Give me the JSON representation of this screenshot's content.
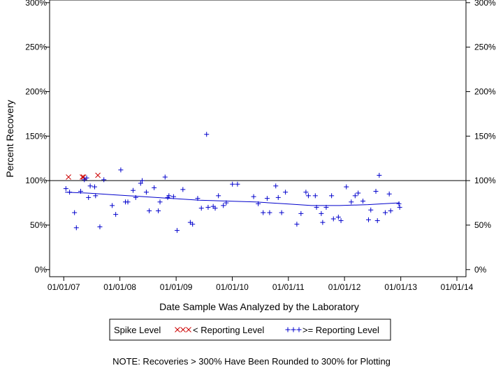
{
  "chart_data": {
    "type": "scatter",
    "title": "",
    "xlabel": "Date Sample Was Analyzed by the Laboratory",
    "ylabel": "Percent Recovery",
    "x_ticks": [
      "01/01/07",
      "01/01/08",
      "01/01/09",
      "01/01/10",
      "01/01/11",
      "01/01/12",
      "01/01/13",
      "01/01/14"
    ],
    "y_ticks": [
      "0%",
      "50%",
      "100%",
      "150%",
      "200%",
      "250%",
      "300%"
    ],
    "xlim": [
      "2006-10-01",
      "2014-03-01"
    ],
    "ylim": [
      -8,
      303
    ],
    "reference_line": 100,
    "legend": {
      "title": "Spike Level",
      "position": "bottom",
      "below_label": "< Reporting Level",
      "above_label": ">= Reporting Level"
    },
    "note": "NOTE: Recoveries > 300% Have Been Rounded to 300% for Plotting",
    "colors": {
      "below": "#cc0000",
      "above": "#0000cc",
      "axis": "#000000"
    },
    "series": [
      {
        "key": "below",
        "marker": "x",
        "points": [
          [
            "2007-02-01",
            104
          ],
          [
            "2007-05-02",
            104
          ],
          [
            "2007-05-10",
            104
          ],
          [
            "2007-08-11",
            106
          ]
        ]
      },
      {
        "key": "above",
        "marker": "+",
        "points": [
          [
            "2007-01-15",
            91
          ],
          [
            "2007-02-08",
            87
          ],
          [
            "2007-03-12",
            64
          ],
          [
            "2007-03-24",
            47
          ],
          [
            "2007-04-21",
            88
          ],
          [
            "2007-05-15",
            101
          ],
          [
            "2007-05-30",
            103
          ],
          [
            "2007-06-11",
            81
          ],
          [
            "2007-06-22",
            94
          ],
          [
            "2007-07-21",
            93
          ],
          [
            "2007-07-27",
            83
          ],
          [
            "2007-08-24",
            48
          ],
          [
            "2007-09-19",
            101
          ],
          [
            "2007-11-12",
            72
          ],
          [
            "2007-12-05",
            62
          ],
          [
            "2008-01-07",
            112
          ],
          [
            "2008-02-06",
            76
          ],
          [
            "2008-02-22",
            76
          ],
          [
            "2008-03-27",
            89
          ],
          [
            "2008-04-13",
            81
          ],
          [
            "2008-05-15",
            97
          ],
          [
            "2008-05-25",
            100
          ],
          [
            "2008-06-21",
            87
          ],
          [
            "2008-07-10",
            66
          ],
          [
            "2008-08-11",
            92
          ],
          [
            "2008-09-07",
            66
          ],
          [
            "2008-09-18",
            76
          ],
          [
            "2008-10-21",
            104
          ],
          [
            "2008-11-07",
            81
          ],
          [
            "2008-11-15",
            83
          ],
          [
            "2008-12-15",
            82
          ],
          [
            "2009-01-07",
            44
          ],
          [
            "2009-02-14",
            90
          ],
          [
            "2009-04-03",
            53
          ],
          [
            "2009-04-18",
            51
          ],
          [
            "2009-05-21",
            80
          ],
          [
            "2009-06-14",
            69
          ],
          [
            "2009-07-28",
            70
          ],
          [
            "2009-07-18",
            152
          ],
          [
            "2009-08-30",
            71
          ],
          [
            "2009-09-12",
            69
          ],
          [
            "2009-10-03",
            83
          ],
          [
            "2009-11-04",
            72
          ],
          [
            "2009-11-23",
            75
          ],
          [
            "2010-01-02",
            96
          ],
          [
            "2010-02-04",
            96
          ],
          [
            "2010-05-20",
            82
          ],
          [
            "2010-06-19",
            74
          ],
          [
            "2010-07-21",
            64
          ],
          [
            "2010-08-16",
            80
          ],
          [
            "2010-09-01",
            64
          ],
          [
            "2010-10-11",
            94
          ],
          [
            "2010-10-27",
            81
          ],
          [
            "2010-11-18",
            64
          ],
          [
            "2010-12-13",
            87
          ],
          [
            "2011-02-25",
            51
          ],
          [
            "2011-03-24",
            63
          ],
          [
            "2011-04-25",
            87
          ],
          [
            "2011-05-11",
            83
          ],
          [
            "2011-06-25",
            83
          ],
          [
            "2011-07-03",
            70
          ],
          [
            "2011-08-03",
            63
          ],
          [
            "2011-08-12",
            53
          ],
          [
            "2011-09-04",
            70
          ],
          [
            "2011-10-09",
            83
          ],
          [
            "2011-10-21",
            57
          ],
          [
            "2011-11-22",
            59
          ],
          [
            "2011-12-09",
            55
          ],
          [
            "2012-01-13",
            93
          ],
          [
            "2012-02-14",
            76
          ],
          [
            "2012-03-10",
            83
          ],
          [
            "2012-03-30",
            86
          ],
          [
            "2012-04-30",
            77
          ],
          [
            "2012-06-05",
            56
          ],
          [
            "2012-06-20",
            67
          ],
          [
            "2012-07-23",
            88
          ],
          [
            "2012-08-02",
            55
          ],
          [
            "2012-08-14",
            106
          ],
          [
            "2012-09-22",
            64
          ],
          [
            "2012-10-18",
            85
          ],
          [
            "2012-10-27",
            66
          ],
          [
            "2012-12-20",
            74
          ],
          [
            "2012-12-25",
            70
          ]
        ]
      }
    ],
    "trend_line": [
      [
        "2007-01-10",
        87
      ],
      [
        "2007-06-01",
        86
      ],
      [
        "2007-12-01",
        84
      ],
      [
        "2008-06-01",
        82
      ],
      [
        "2008-12-01",
        80
      ],
      [
        "2009-06-01",
        78
      ],
      [
        "2009-12-01",
        77
      ],
      [
        "2010-06-01",
        76
      ],
      [
        "2010-12-01",
        74
      ],
      [
        "2011-06-01",
        72
      ],
      [
        "2011-12-01",
        72
      ],
      [
        "2012-06-01",
        73
      ],
      [
        "2012-12-25",
        75
      ]
    ]
  }
}
